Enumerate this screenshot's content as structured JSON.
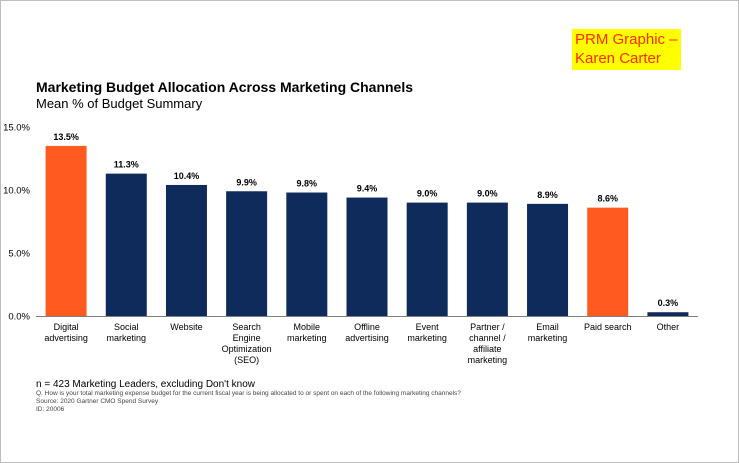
{
  "annotation": {
    "line1": "PRM Graphic –",
    "line2": "Karen Carter"
  },
  "chart_data": {
    "type": "bar",
    "title": "Marketing Budget Allocation Across  Marketing Channels",
    "subtitle": "Mean % of Budget Summary",
    "categories": [
      [
        "Digital",
        "advertising"
      ],
      [
        "Social",
        "marketing"
      ],
      [
        "Website"
      ],
      [
        "Search",
        "Engine",
        "Optimization",
        "(SEO)"
      ],
      [
        "Mobile",
        "marketing"
      ],
      [
        "Offline",
        "advertising"
      ],
      [
        "Event",
        "marketing"
      ],
      [
        "Partner /",
        "channel /",
        "affiliate",
        "marketing"
      ],
      [
        "Email",
        "marketing"
      ],
      [
        "Paid search"
      ],
      [
        "Other"
      ]
    ],
    "values": [
      13.5,
      11.3,
      10.4,
      9.9,
      9.8,
      9.4,
      9.0,
      9.0,
      8.9,
      8.6,
      0.3
    ],
    "value_labels": [
      "13.5%",
      "11.3%",
      "10.4%",
      "9.9%",
      "9.8%",
      "9.4%",
      "9.0%",
      "9.0%",
      "8.9%",
      "8.6%",
      "0.3%"
    ],
    "highlighted": [
      true,
      false,
      false,
      false,
      false,
      false,
      false,
      false,
      false,
      true,
      false
    ],
    "yticks": [
      "0.0%",
      "5.0%",
      "10.0%",
      "15.0%"
    ],
    "ytick_values": [
      0,
      5,
      10,
      15
    ],
    "ylim": [
      0,
      15
    ],
    "colors": {
      "default": "#0f2b5b",
      "highlight": "#ff5a1f"
    },
    "grid": false
  },
  "footer": {
    "n": "n = 423 Marketing Leaders, excluding Don't know",
    "question": "Q. How is your total marketing expense budget for the current fiscal year is being allocated to or spent on each of the following marketing channels?",
    "source": "Source: 2020 Gartner CMO Spend Survey",
    "id": "ID: 20006"
  }
}
